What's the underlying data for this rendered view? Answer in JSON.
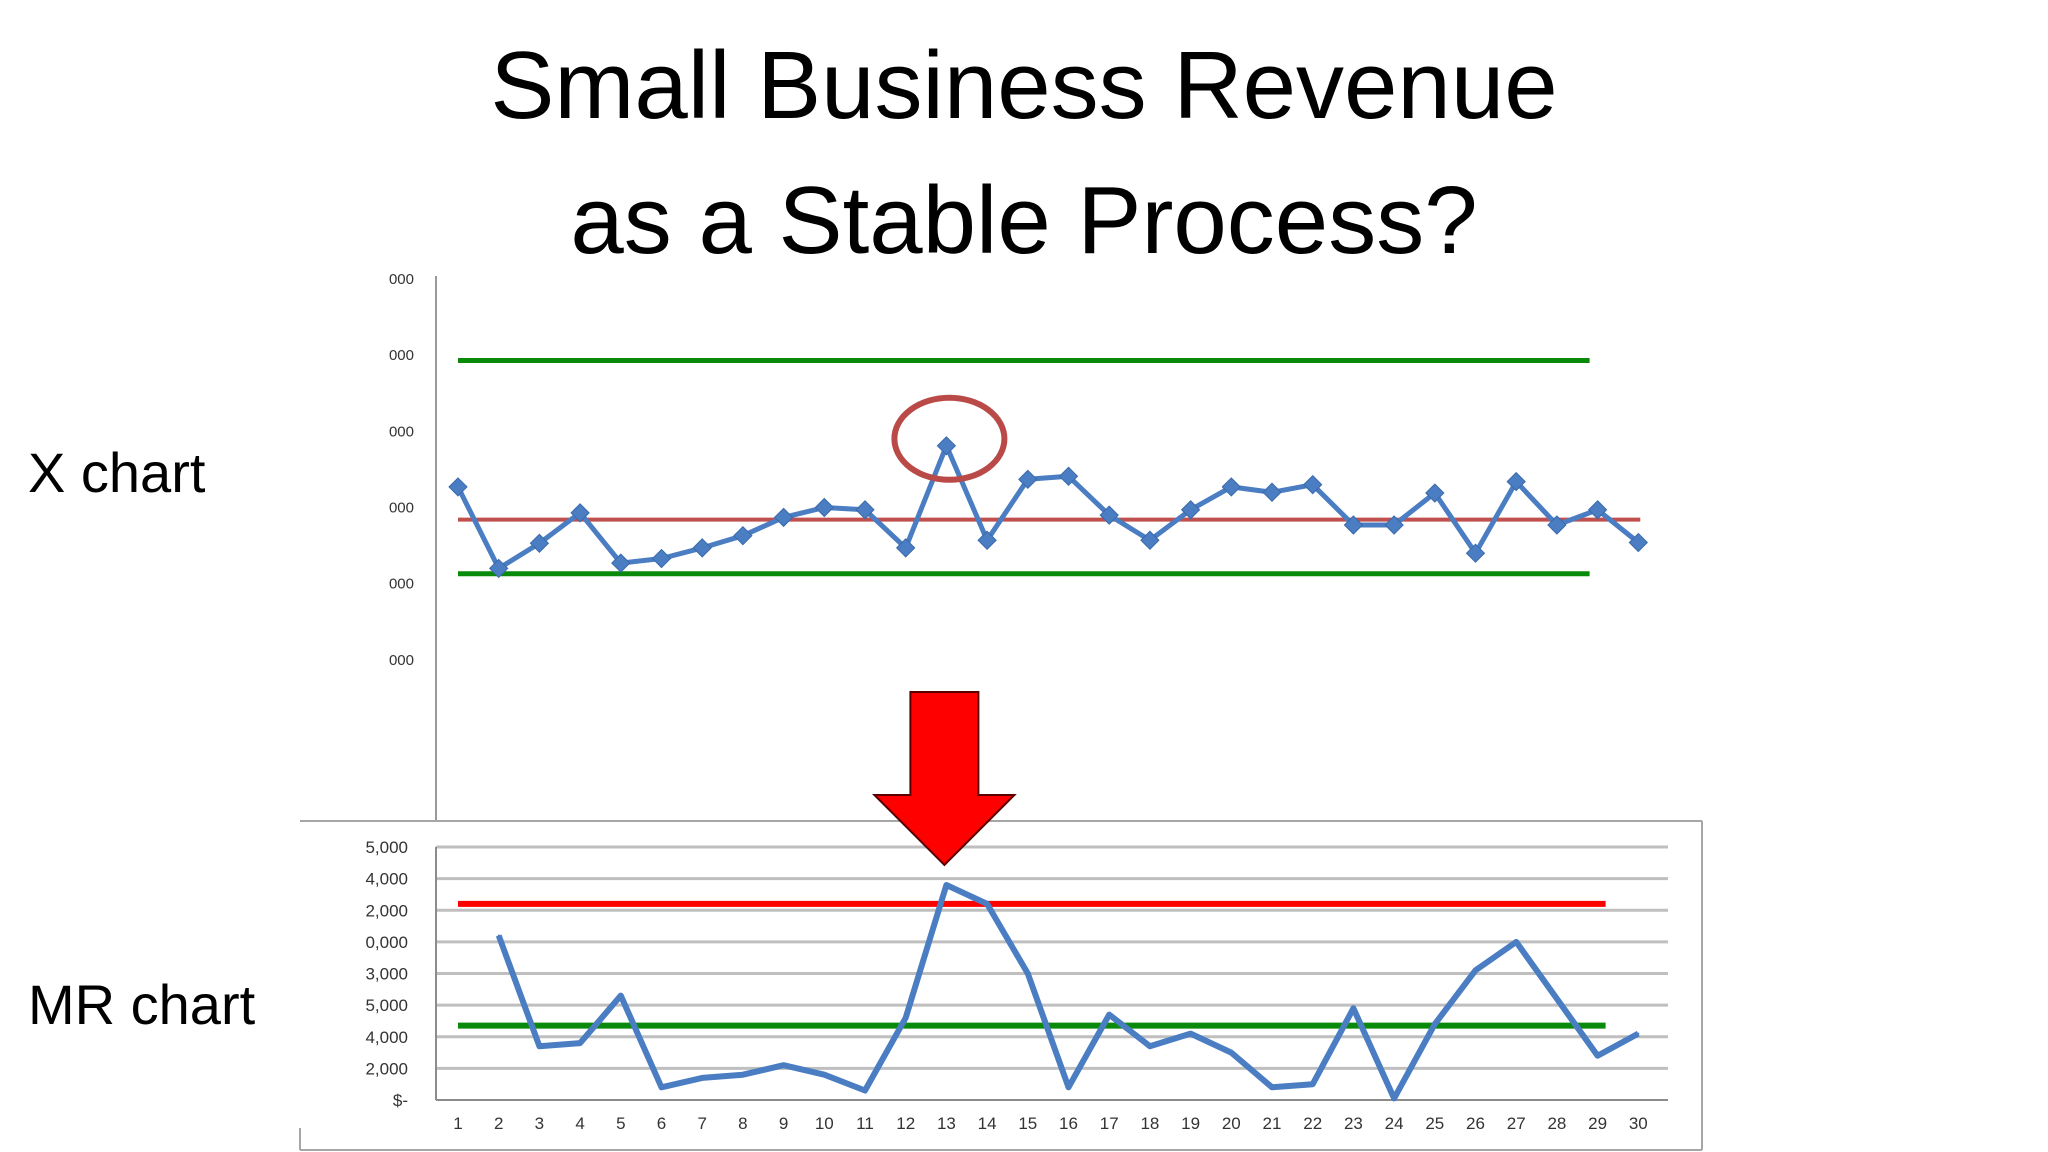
{
  "slide": {
    "title_line1": "Small Business Revenue",
    "title_line2": "as a Stable Process?"
  },
  "labels": {
    "x_chart": "X chart",
    "mr_chart": "MR chart"
  },
  "colors": {
    "data_series": "#4a7dc2",
    "marker": "#4a7dc2",
    "center_line": "#c0504d",
    "control_limit": "#0a8a0a",
    "mr_upper_limit": "#ff0000",
    "highlight_circle": "#b94a48",
    "arrow_fill": "#ff0000",
    "gridline": "#bfbfbf"
  },
  "annotations": {
    "highlight_circle_around_point": 13,
    "down_arrow_points_to": 13,
    "icons": [
      "red-down-arrow-icon",
      "highlight-circle-icon"
    ]
  },
  "chart_data": [
    {
      "type": "line",
      "name": "X chart",
      "markers": "diamond",
      "x": [
        1,
        2,
        3,
        4,
        5,
        6,
        7,
        8,
        9,
        10,
        11,
        12,
        13,
        14,
        15,
        16,
        17,
        18,
        19,
        20,
        21,
        22,
        23,
        24,
        25,
        26,
        27,
        28,
        29,
        30
      ],
      "y": [
        3.27,
        2.2,
        2.53,
        2.93,
        2.27,
        2.33,
        2.47,
        2.63,
        2.87,
        3.0,
        2.97,
        2.47,
        3.81,
        2.57,
        3.37,
        3.41,
        2.9,
        2.57,
        2.97,
        3.27,
        3.2,
        3.3,
        2.77,
        2.77,
        3.19,
        2.4,
        3.34,
        2.77,
        2.97,
        2.54
      ],
      "center_line": 2.84,
      "ucl": 4.93,
      "lcl": 2.13,
      "ylim": [
        0,
        6
      ],
      "y_tick_labels": [
        "000",
        "000",
        "000",
        "000",
        "000",
        "000"
      ],
      "grid": false
    },
    {
      "type": "line",
      "name": "MR chart",
      "x": [
        2,
        3,
        4,
        5,
        6,
        7,
        8,
        9,
        10,
        11,
        12,
        13,
        14,
        15,
        16,
        17,
        18,
        19,
        20,
        21,
        22,
        23,
        24,
        25,
        26,
        27,
        28,
        29,
        30
      ],
      "values": [
        5200,
        1700,
        1800,
        3300,
        400,
        700,
        800,
        1100,
        800,
        300,
        2600,
        6800,
        6200,
        4000,
        400,
        2700,
        1700,
        2100,
        1500,
        400,
        500,
        2900,
        50,
        2400,
        4100,
        5000,
        3200,
        1400,
        2100
      ],
      "mr_upper_limit": 6200,
      "mr_center_line": 2350,
      "ylim": [
        0,
        8000
      ],
      "y_tick_labels": [
        "$-",
        "2,000",
        "4,000",
        "5,000",
        "3,000",
        "0,000",
        "2,000",
        "4,000",
        "5,000"
      ],
      "x_tick_labels": [
        "1",
        "2",
        "3",
        "4",
        "5",
        "6",
        "7",
        "8",
        "9",
        "10",
        "11",
        "12",
        "13",
        "14",
        "15",
        "16",
        "17",
        "18",
        "19",
        "20",
        "21",
        "22",
        "23",
        "24",
        "25",
        "26",
        "27",
        "28",
        "29",
        "30"
      ],
      "grid": true
    }
  ]
}
